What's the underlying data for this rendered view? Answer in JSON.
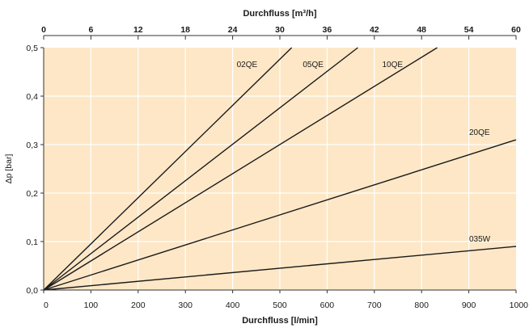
{
  "chart_data": {
    "type": "line",
    "top_axis": {
      "label": "Durchfluss [m³/h]",
      "ticks": [
        "0",
        "6",
        "12",
        "18",
        "24",
        "30",
        "36",
        "42",
        "48",
        "54",
        "60"
      ],
      "range": [
        0,
        60
      ]
    },
    "bottom_axis": {
      "label": "Durchfluss [l/min]",
      "ticks": [
        "0",
        "100",
        "200",
        "300",
        "400",
        "500",
        "600",
        "700",
        "800",
        "900",
        "1000"
      ],
      "range": [
        0,
        1000
      ]
    },
    "y_axis": {
      "label": "Δp [bar]",
      "ticks": [
        "0,0",
        "0,1",
        "0,2",
        "0,3",
        "0,4",
        "0,5"
      ],
      "range": [
        0,
        0.5
      ]
    },
    "grid": true,
    "plot_background": "#fde7c6",
    "grid_color": "#ffffff",
    "line_color": "#1a1a1a",
    "series": [
      {
        "name": "02QE",
        "points": [
          [
            0,
            0
          ],
          [
            525,
            0.5
          ]
        ]
      },
      {
        "name": "05QE",
        "points": [
          [
            0,
            0
          ],
          [
            665,
            0.5
          ]
        ]
      },
      {
        "name": "10QE",
        "points": [
          [
            0,
            0
          ],
          [
            833,
            0.5
          ]
        ]
      },
      {
        "name": "20QE",
        "points": [
          [
            0,
            0
          ],
          [
            1000,
            0.31
          ]
        ]
      },
      {
        "name": "035W",
        "points": [
          [
            0,
            0
          ],
          [
            1000,
            0.09
          ]
        ]
      }
    ]
  }
}
